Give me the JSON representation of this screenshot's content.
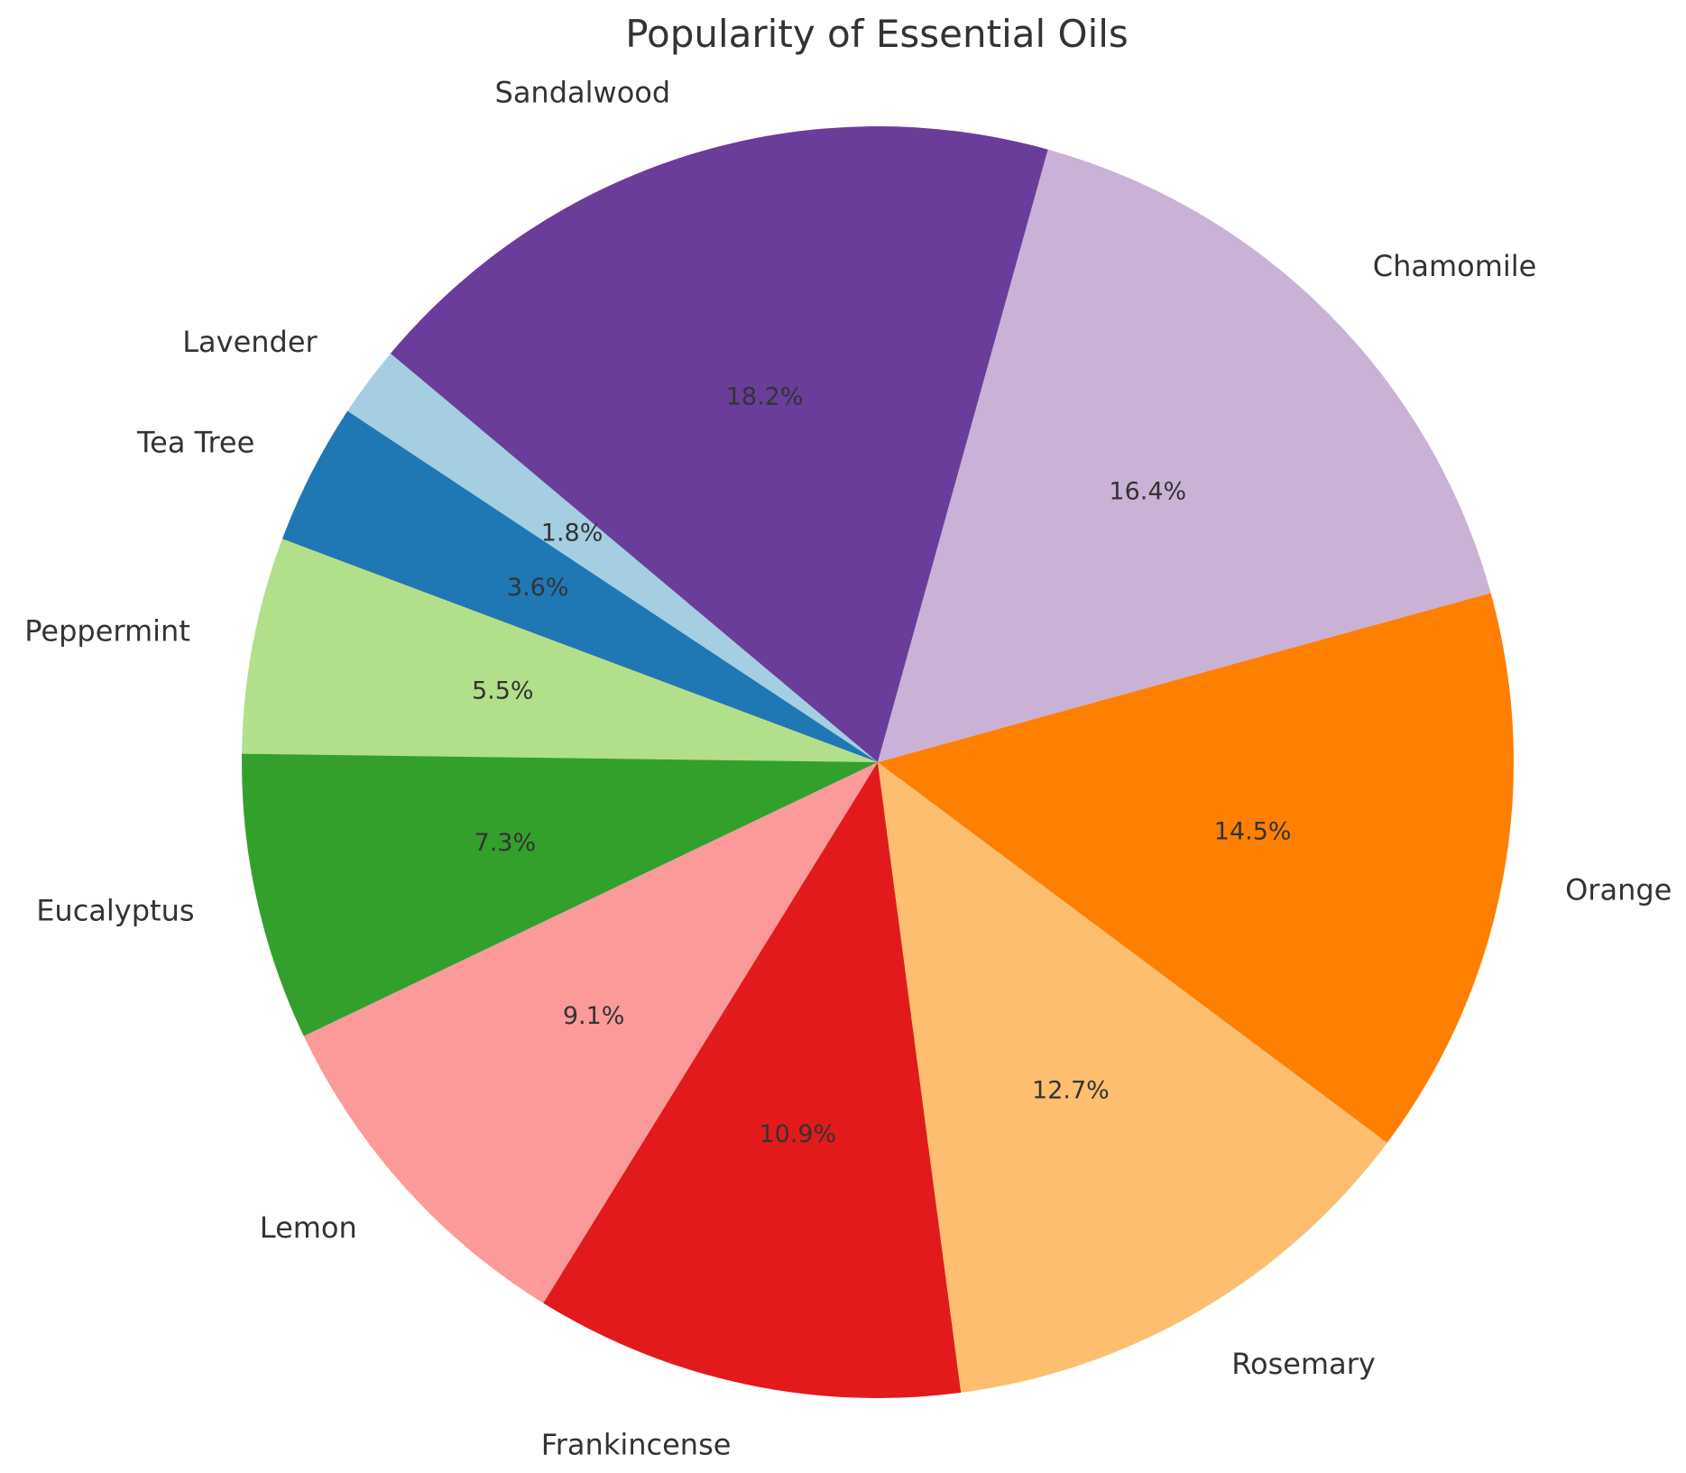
{
  "chart_data": {
    "type": "pie",
    "title": "Popularity of Essential Oils",
    "start_angle_deg": 140,
    "direction": "counterclockwise",
    "slices": [
      {
        "label": "Lavender",
        "value": 1.8,
        "pct_label": "1.8%",
        "color": "#a6cee3"
      },
      {
        "label": "Tea Tree",
        "value": 3.6,
        "pct_label": "3.6%",
        "color": "#1f78b4"
      },
      {
        "label": "Peppermint",
        "value": 5.5,
        "pct_label": "5.5%",
        "color": "#b2df8a"
      },
      {
        "label": "Eucalyptus",
        "value": 7.3,
        "pct_label": "7.3%",
        "color": "#33a02c"
      },
      {
        "label": "Lemon",
        "value": 9.1,
        "pct_label": "9.1%",
        "color": "#fb9a99"
      },
      {
        "label": "Frankincense",
        "value": 10.9,
        "pct_label": "10.9%",
        "color": "#e31a1c"
      },
      {
        "label": "Rosemary",
        "value": 12.7,
        "pct_label": "12.7%",
        "color": "#fdbf6f"
      },
      {
        "label": "Orange",
        "value": 14.5,
        "pct_label": "14.5%",
        "color": "#ff7f00"
      },
      {
        "label": "Chamomile",
        "value": 16.4,
        "pct_label": "16.4%",
        "color": "#cab2d6"
      },
      {
        "label": "Sandalwood",
        "value": 18.2,
        "pct_label": "18.2%",
        "color": "#6a3d9a"
      }
    ]
  }
}
